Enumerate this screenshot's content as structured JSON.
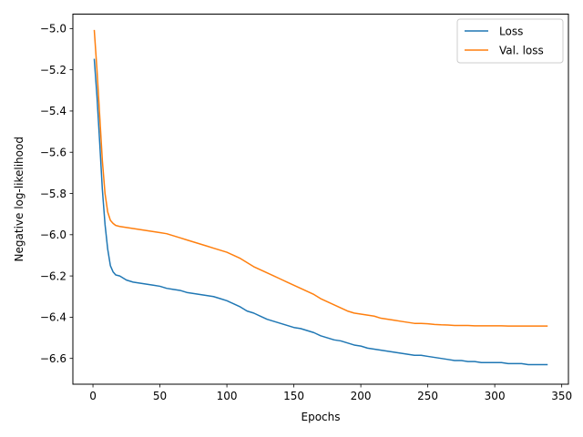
{
  "chart_data": {
    "type": "line",
    "xlabel": "Epochs",
    "ylabel": "Negative log-likelihood",
    "xlim": [
      -15,
      355
    ],
    "ylim": [
      -6.725,
      -4.93
    ],
    "x_ticks": [
      0,
      50,
      100,
      150,
      200,
      250,
      300,
      350
    ],
    "x_tick_labels": [
      "0",
      "50",
      "100",
      "150",
      "200",
      "250",
      "300",
      "350"
    ],
    "y_ticks": [
      -6.6,
      -6.4,
      -6.2,
      -6.0,
      -5.8,
      -5.6,
      -5.4,
      -5.2,
      -5.0
    ],
    "y_tick_labels": [
      "−6.6",
      "−6.4",
      "−6.2",
      "−6.0",
      "−5.8",
      "−5.6",
      "−5.4",
      "−5.2",
      "−5.0"
    ],
    "grid": false,
    "legend_position": "top-right",
    "series": [
      {
        "name": "Loss",
        "color": "#1f77b4",
        "x": [
          1,
          3,
          5,
          7,
          9,
          11,
          13,
          15,
          17,
          20,
          25,
          30,
          35,
          40,
          45,
          50,
          55,
          60,
          65,
          70,
          75,
          80,
          85,
          90,
          95,
          100,
          105,
          110,
          115,
          120,
          125,
          130,
          135,
          140,
          145,
          150,
          155,
          160,
          165,
          170,
          175,
          180,
          185,
          190,
          195,
          200,
          205,
          210,
          215,
          220,
          225,
          230,
          235,
          240,
          245,
          250,
          255,
          260,
          265,
          270,
          275,
          280,
          285,
          290,
          295,
          300,
          305,
          310,
          315,
          320,
          325,
          330,
          335,
          339
        ],
        "y": [
          -5.15,
          -5.33,
          -5.55,
          -5.78,
          -5.95,
          -6.07,
          -6.15,
          -6.18,
          -6.195,
          -6.2,
          -6.22,
          -6.23,
          -6.235,
          -6.24,
          -6.245,
          -6.25,
          -6.26,
          -6.265,
          -6.27,
          -6.28,
          -6.285,
          -6.29,
          -6.295,
          -6.3,
          -6.31,
          -6.32,
          -6.335,
          -6.35,
          -6.37,
          -6.38,
          -6.395,
          -6.41,
          -6.42,
          -6.43,
          -6.44,
          -6.45,
          -6.455,
          -6.465,
          -6.475,
          -6.49,
          -6.5,
          -6.51,
          -6.515,
          -6.525,
          -6.535,
          -6.54,
          -6.55,
          -6.555,
          -6.56,
          -6.565,
          -6.57,
          -6.575,
          -6.58,
          -6.585,
          -6.585,
          -6.59,
          -6.595,
          -6.6,
          -6.605,
          -6.61,
          -6.61,
          -6.615,
          -6.615,
          -6.62,
          -6.62,
          -6.62,
          -6.62,
          -6.625,
          -6.625,
          -6.625,
          -6.63,
          -6.63,
          -6.63,
          -6.63
        ]
      },
      {
        "name": "Val. loss",
        "color": "#ff7f0e",
        "x": [
          1,
          3,
          5,
          7,
          9,
          11,
          13,
          15,
          17,
          20,
          25,
          30,
          35,
          40,
          45,
          50,
          55,
          60,
          65,
          70,
          75,
          80,
          85,
          90,
          95,
          100,
          105,
          110,
          115,
          120,
          125,
          130,
          135,
          140,
          145,
          150,
          155,
          160,
          165,
          170,
          175,
          180,
          185,
          190,
          195,
          200,
          205,
          210,
          215,
          220,
          225,
          230,
          235,
          240,
          245,
          250,
          255,
          260,
          265,
          270,
          275,
          280,
          285,
          290,
          295,
          300,
          305,
          310,
          315,
          320,
          325,
          330,
          335,
          339
        ],
        "y": [
          -5.01,
          -5.2,
          -5.42,
          -5.64,
          -5.8,
          -5.89,
          -5.93,
          -5.945,
          -5.955,
          -5.96,
          -5.965,
          -5.97,
          -5.975,
          -5.98,
          -5.985,
          -5.99,
          -5.995,
          -6.005,
          -6.015,
          -6.025,
          -6.035,
          -6.045,
          -6.055,
          -6.065,
          -6.075,
          -6.085,
          -6.1,
          -6.115,
          -6.135,
          -6.155,
          -6.17,
          -6.185,
          -6.2,
          -6.215,
          -6.23,
          -6.245,
          -6.26,
          -6.275,
          -6.29,
          -6.31,
          -6.325,
          -6.34,
          -6.355,
          -6.37,
          -6.38,
          -6.385,
          -6.39,
          -6.395,
          -6.405,
          -6.41,
          -6.415,
          -6.42,
          -6.425,
          -6.43,
          -6.43,
          -6.432,
          -6.435,
          -6.437,
          -6.438,
          -6.44,
          -6.44,
          -6.44,
          -6.442,
          -6.442,
          -6.442,
          -6.442,
          -6.442,
          -6.443,
          -6.443,
          -6.443,
          -6.443,
          -6.443,
          -6.443,
          -6.443
        ]
      }
    ]
  }
}
